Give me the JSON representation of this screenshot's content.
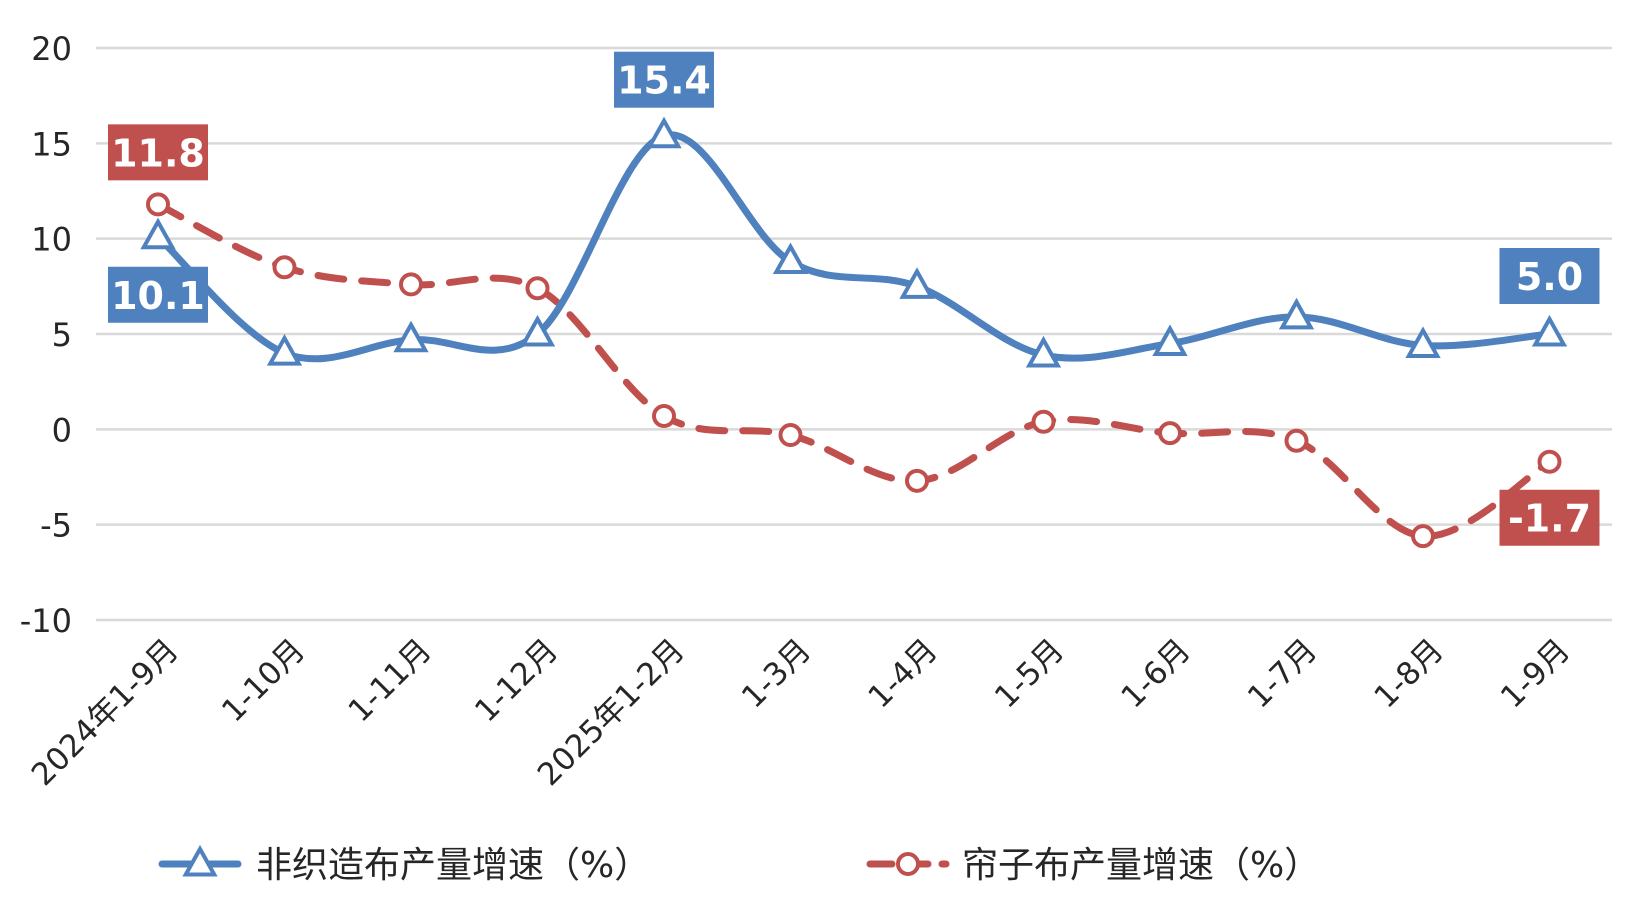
{
  "chart_data": {
    "type": "line",
    "title": "",
    "xlabel": "",
    "ylabel": "",
    "categories": [
      "2024年1-9月",
      "1-10月",
      "1-11月",
      "1-12月",
      "2025年1-2月",
      "1-3月",
      "1-4月",
      "1-5月",
      "1-6月",
      "1-7月",
      "1-8月",
      "1-9月"
    ],
    "ylim": [
      -10,
      20
    ],
    "yticks": [
      "20",
      "15",
      "10",
      "5",
      "0",
      "-5",
      "-10"
    ],
    "grid": "horizontal",
    "legend_position": "bottom",
    "series": [
      {
        "name": "非织造布产量增速（%）",
        "values": [
          10.1,
          4.0,
          4.7,
          5.0,
          15.4,
          8.8,
          7.5,
          3.9,
          4.5,
          5.9,
          4.4,
          5.0
        ],
        "color": "#4E81BD",
        "marker": "triangle",
        "line_style": "solid",
        "labels": [
          {
            "index": 0,
            "text": "10.1"
          },
          {
            "index": 4,
            "text": "15.4"
          },
          {
            "index": 11,
            "text": "5.0"
          }
        ]
      },
      {
        "name": "帘子布产量增速（%）",
        "values": [
          11.8,
          8.5,
          7.6,
          7.4,
          0.7,
          -0.3,
          -2.7,
          0.4,
          -0.2,
          -0.6,
          -5.6,
          -1.7
        ],
        "color": "#C0504D",
        "marker": "circle",
        "line_style": "dashed",
        "labels": [
          {
            "index": 0,
            "text": "11.8"
          },
          {
            "index": 11,
            "text": "-1.7"
          }
        ]
      }
    ]
  }
}
